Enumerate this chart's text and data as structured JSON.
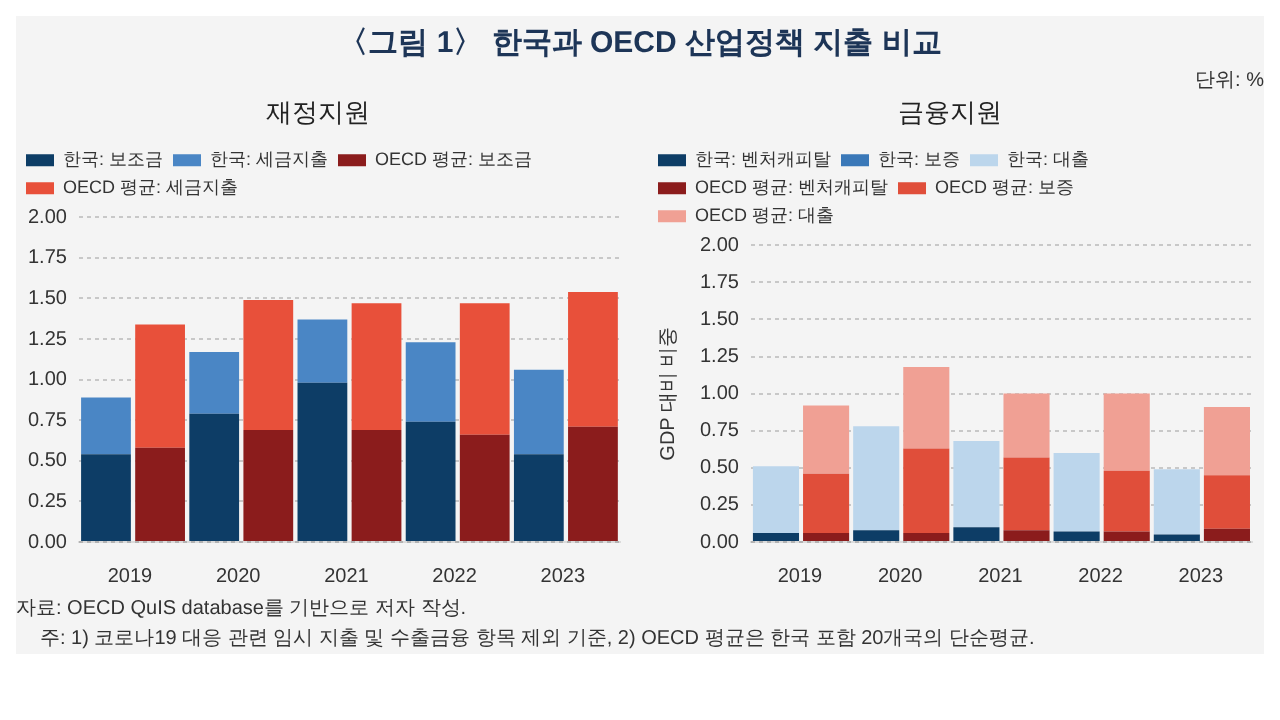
{
  "chart_data": [
    {
      "type": "other",
      "title": "〈그림 1〉 한국과 OECD 산업정책 지출 비교",
      "annotations": [
        "단위: %"
      ]
    },
    {
      "type": "bar",
      "title": "재정지원",
      "categories": [
        "2019",
        null,
        "2020",
        null,
        "2021",
        null,
        "2022",
        null,
        "2023",
        null
      ],
      "stacked": true,
      "ylim": [
        0,
        2
      ],
      "yticks": [
        {
          "value": 0,
          "label": "0.00"
        },
        0.25,
        {
          "value": 0.5,
          "label": "0.50"
        },
        0.75,
        {
          "value": 1,
          "label": "1.00"
        },
        1.25,
        {
          "value": 1.5,
          "label": "1.50"
        },
        1.75,
        {
          "value": 2,
          "label": "2.00"
        }
      ],
      "grid": "y",
      "legend": "top left",
      "series": [
        {
          "name": "한국: 보조금",
          "color": "#0d3d66",
          "values": [
            0.54,
            null,
            0.79,
            null,
            0.98,
            null,
            0.74,
            null,
            0.54,
            null
          ]
        },
        {
          "name": "한국: 세금지출",
          "color": "#4a86c5",
          "values": [
            0.35,
            null,
            0.38,
            null,
            0.39,
            null,
            0.49,
            null,
            0.52,
            null
          ]
        },
        {
          "name": "OECD 평균: 보조금",
          "color": "#8b1c1c",
          "values": [
            null,
            0.58,
            null,
            0.69,
            null,
            0.69,
            null,
            0.66,
            null,
            0.71
          ]
        },
        {
          "name": "OECD 평균: 세금지출",
          "color": "#e8503a",
          "values": [
            null,
            0.76,
            null,
            0.8,
            null,
            0.78,
            null,
            0.81,
            null,
            0.83
          ]
        }
      ]
    },
    {
      "type": "bar",
      "title": "금융지원",
      "ylabel": "GDP 대비 비중",
      "categories": [
        "2019",
        null,
        "2020",
        null,
        "2021",
        null,
        "2022",
        null,
        "2023",
        null
      ],
      "stacked": true,
      "ylim": [
        0,
        2
      ],
      "yticks": [
        {
          "value": 0,
          "label": "0.00"
        },
        0.25,
        {
          "value": 0.5,
          "label": "0.50"
        },
        0.75,
        {
          "value": 1,
          "label": "1.00"
        },
        1.25,
        {
          "value": 1.5,
          "label": "1.50"
        },
        1.75,
        {
          "value": 2,
          "label": "2.00"
        }
      ],
      "grid": "y",
      "legend": "top left",
      "series": [
        {
          "name": "한국: 벤처캐피탈",
          "color": "#0d3d66",
          "values": [
            0.06,
            null,
            0.08,
            null,
            0.1,
            null,
            0.07,
            null,
            0.05,
            null
          ]
        },
        {
          "name": "한국: 보증",
          "color": "#3a78b8",
          "values": [
            0,
            null,
            0,
            null,
            0,
            null,
            0,
            null,
            0,
            null
          ]
        },
        {
          "name": "한국: 대출",
          "color": "#bcd6ec",
          "values": [
            0.45,
            null,
            0.7,
            null,
            0.58,
            null,
            0.53,
            null,
            0.44,
            null
          ]
        },
        {
          "name": "OECD 평균: 벤처캐피탈",
          "color": "#8b1c1c",
          "values": [
            null,
            0.06,
            null,
            0.06,
            null,
            0.08,
            null,
            0.07,
            null,
            0.09
          ]
        },
        {
          "name": "OECD 평균: 보증",
          "color": "#e04e3a",
          "values": [
            null,
            0.4,
            null,
            0.57,
            null,
            0.49,
            null,
            0.41,
            null,
            0.36
          ]
        },
        {
          "name": "OECD 평균: 대출",
          "color": "#f0a094",
          "values": [
            null,
            0.46,
            null,
            0.55,
            null,
            0.43,
            null,
            0.52,
            null,
            0.46
          ]
        }
      ]
    },
    {
      "type": "other",
      "annotations": [
        "자료: OECD QuIS database를 기반으로 저자 작성.",
        "주: 1) 코로나19 대응 관련 임시 지출 및 수출금융 항목 제외 기준, 2) OECD 평균은 한국 포함 20개국의 단순평균."
      ]
    }
  ]
}
